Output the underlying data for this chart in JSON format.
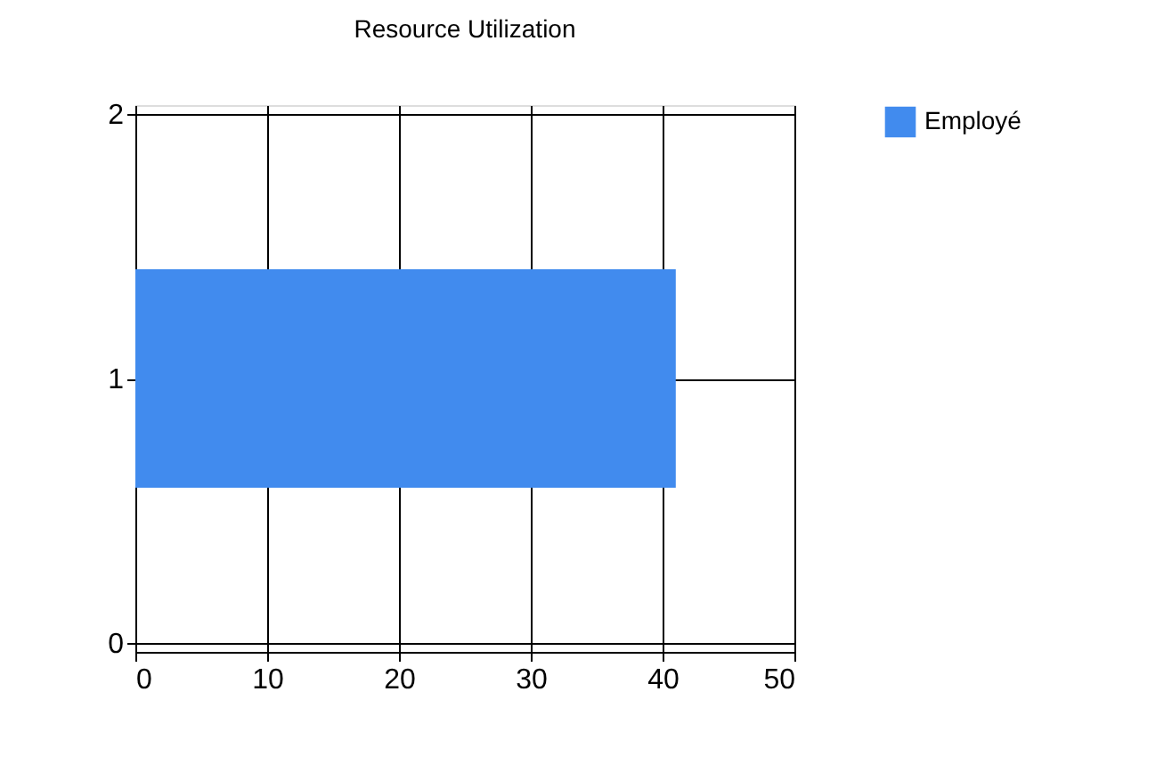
{
  "chart_data": {
    "type": "bar",
    "orientation": "horizontal",
    "title": "Resource Utilization",
    "x": [
      1
    ],
    "series": [
      {
        "name": "Employé",
        "color": "#418bee",
        "values": [
          41
        ]
      }
    ],
    "xlim": [
      0,
      50
    ],
    "xticks": [
      0,
      10,
      20,
      30,
      40,
      50
    ],
    "ylim": [
      0,
      2
    ],
    "yticks": [
      0,
      1,
      2
    ],
    "grid": true,
    "legend": "top right"
  }
}
